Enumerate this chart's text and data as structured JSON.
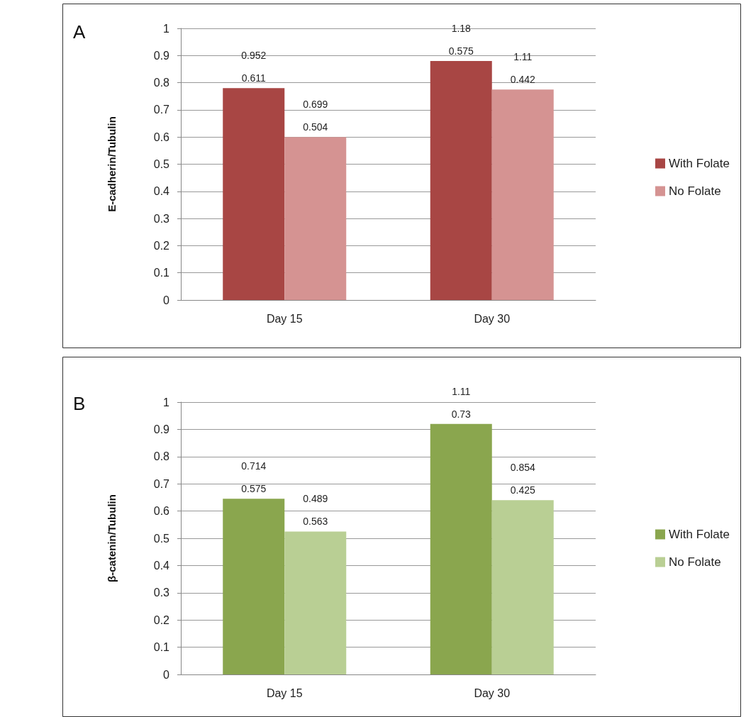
{
  "chart_data": [
    {
      "type": "bar",
      "title": "A",
      "categories": [
        "Day 15",
        "Day 30"
      ],
      "ylabel": "E-cadherin/Tubulin",
      "ylim": [
        0,
        1
      ],
      "yticks": [
        0,
        0.1,
        0.2,
        0.3,
        0.4,
        0.5,
        0.6,
        0.7,
        0.8,
        0.9,
        1
      ],
      "grid": "y",
      "legend": "right",
      "series": [
        {
          "name": "With Folate",
          "color": "#a84644",
          "values": [
            0.78,
            0.88
          ]
        },
        {
          "name": "No Folate",
          "color": "#d59392",
          "values": [
            0.6,
            0.775
          ]
        }
      ],
      "annotations": [
        "0.952",
        "0.611",
        "0.699",
        "0.504",
        "1.18",
        "0.575",
        "1.11",
        "0.442"
      ]
    },
    {
      "type": "bar",
      "title": "B",
      "categories": [
        "Day 15",
        "Day 30"
      ],
      "ylabel": "β-catenin/Tubulin",
      "ylim": [
        0,
        1
      ],
      "yticks": [
        0,
        0.1,
        0.2,
        0.3,
        0.4,
        0.5,
        0.6,
        0.7,
        0.8,
        0.9,
        1
      ],
      "grid": "y",
      "legend": "right",
      "series": [
        {
          "name": "With Folate",
          "color": "#8aa64e",
          "values": [
            0.645,
            0.92
          ]
        },
        {
          "name": "No Folate",
          "color": "#b9cf94",
          "values": [
            0.525,
            0.64
          ]
        }
      ],
      "annotations": [
        "0.714",
        "0.575",
        "0.489",
        "0.563",
        "1.11",
        "0.73",
        "0.854",
        "0.425"
      ]
    }
  ]
}
